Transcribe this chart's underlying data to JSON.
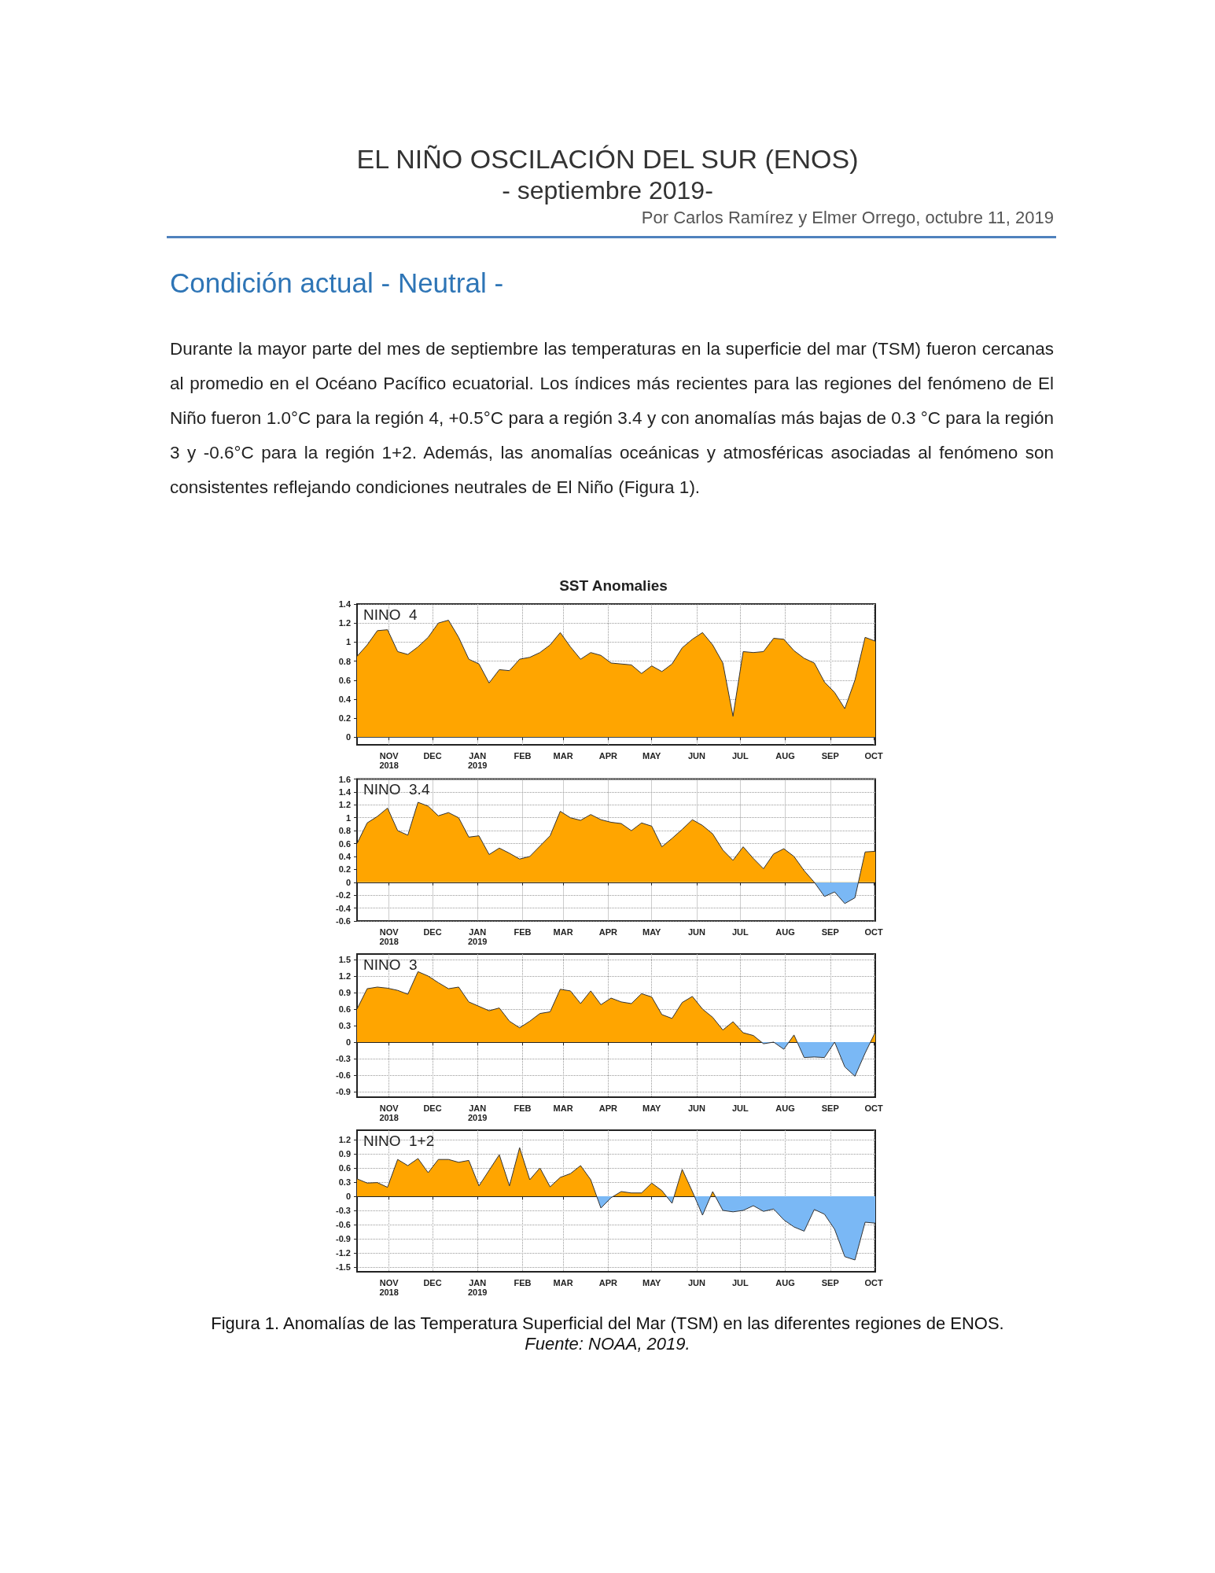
{
  "chart_data": [
    {
      "type": "other",
      "title": "EL NIÑO OSCILACIÓN DEL SUR (ENOS)",
      "subtitle": "- septiembre 2019-",
      "annotations": [
        "Por Carlos Ramírez y Elmer Orrego, octubre 11, 2019",
        "Condición actual - Neutral -",
        "Durante la mayor parte del mes de septiembre las temperaturas en la superficie del mar (TSM) fueron cercanas al promedio en el Océano Pacífico ecuatorial. Los índices más recientes para las regiones del fenómeno de El Niño fueron 1.0°C para la región 4, +0.5°C para a región 3.4 y con anomalías más bajas de 0.3 °C para la región 3 y -0.6°C para la región 1+2. Además, las anomalías oceánicas y atmosféricas asociadas al fenómeno son consistentes reflejando condiciones neutrales de El Niño (Figura 1)."
      ]
    },
    {
      "type": "area",
      "title": "SST Anomalies",
      "annotations": [
        "NINO  4"
      ],
      "colors": [
        "#ffa500",
        "#7ab8f5"
      ],
      "grid": true,
      "x": [
        "2018-10-10",
        "2018-10-17",
        "2018-10-24",
        "2018-10-31",
        "2018-11-07",
        "2018-11-14",
        "2018-11-21",
        "2018-11-28",
        "2018-12-05",
        "2018-12-12",
        "2018-12-19",
        "2018-12-26",
        "2019-01-02",
        "2019-01-09",
        "2019-01-16",
        "2019-01-23",
        "2019-01-30",
        "2019-02-06",
        "2019-02-13",
        "2019-02-20",
        "2019-02-27",
        "2019-03-06",
        "2019-03-13",
        "2019-03-20",
        "2019-03-27",
        "2019-04-03",
        "2019-04-10",
        "2019-04-17",
        "2019-04-24",
        "2019-05-01",
        "2019-05-08",
        "2019-05-15",
        "2019-05-22",
        "2019-05-29",
        "2019-06-05",
        "2019-06-12",
        "2019-06-19",
        "2019-06-26",
        "2019-07-03",
        "2019-07-10",
        "2019-07-17",
        "2019-07-24",
        "2019-07-31",
        "2019-08-07",
        "2019-08-14",
        "2019-08-21",
        "2019-08-28",
        "2019-09-04",
        "2019-09-11",
        "2019-09-18",
        "2019-09-25",
        "2019-10-02"
      ],
      "xlim": [
        "2018-10-10",
        "2019-10-02"
      ],
      "xticks": [
        {
          "value": "2018-11-01",
          "label": "NOV\n2018"
        },
        {
          "value": "2018-12-01",
          "label": "DEC"
        },
        {
          "value": "2019-01-01",
          "label": "JAN\n2019"
        },
        {
          "value": "2019-02-01",
          "label": "FEB"
        },
        {
          "value": "2019-03-01",
          "label": "MAR"
        },
        {
          "value": "2019-04-01",
          "label": "APR"
        },
        {
          "value": "2019-05-01",
          "label": "MAY"
        },
        {
          "value": "2019-06-01",
          "label": "JUN"
        },
        {
          "value": "2019-07-01",
          "label": "JUL"
        },
        {
          "value": "2019-08-01",
          "label": "AUG"
        },
        {
          "value": "2019-09-01",
          "label": "SEP"
        },
        {
          "value": "2019-10-01",
          "label": "OCT"
        }
      ],
      "ylim": [
        -0.08,
        1.4
      ],
      "yticks": [
        0,
        0.2,
        0.4,
        0.6,
        0.8,
        1,
        1.2,
        1.4
      ],
      "series": [
        {
          "values": [
            0.85,
            0.97,
            1.12,
            1.13,
            0.9,
            0.87,
            0.95,
            1.05,
            1.2,
            1.23,
            1.05,
            0.82,
            0.77,
            0.57,
            0.71,
            0.7,
            0.82,
            0.84,
            0.89,
            0.97,
            1.1,
            0.95,
            0.82,
            0.89,
            0.86,
            0.78,
            0.77,
            0.76,
            0.67,
            0.75,
            0.69,
            0.77,
            0.94,
            1.03,
            1.1,
            0.97,
            0.78,
            0.22,
            0.9,
            0.89,
            0.9,
            1.04,
            1.03,
            0.91,
            0.83,
            0.78,
            0.58,
            0.47,
            0.3,
            0.6,
            1.05,
            1.01
          ]
        }
      ]
    },
    {
      "type": "area",
      "annotations": [
        "NINO  3.4"
      ],
      "colors": [
        "#ffa500",
        "#7ab8f5"
      ],
      "grid": true,
      "x": [
        "2018-10-10",
        "2018-10-17",
        "2018-10-24",
        "2018-10-31",
        "2018-11-07",
        "2018-11-14",
        "2018-11-21",
        "2018-11-28",
        "2018-12-05",
        "2018-12-12",
        "2018-12-19",
        "2018-12-26",
        "2019-01-02",
        "2019-01-09",
        "2019-01-16",
        "2019-01-23",
        "2019-01-30",
        "2019-02-06",
        "2019-02-13",
        "2019-02-20",
        "2019-02-27",
        "2019-03-06",
        "2019-03-13",
        "2019-03-20",
        "2019-03-27",
        "2019-04-03",
        "2019-04-10",
        "2019-04-17",
        "2019-04-24",
        "2019-05-01",
        "2019-05-08",
        "2019-05-15",
        "2019-05-22",
        "2019-05-29",
        "2019-06-05",
        "2019-06-12",
        "2019-06-19",
        "2019-06-26",
        "2019-07-03",
        "2019-07-10",
        "2019-07-17",
        "2019-07-24",
        "2019-07-31",
        "2019-08-07",
        "2019-08-14",
        "2019-08-21",
        "2019-08-28",
        "2019-09-04",
        "2019-09-11",
        "2019-09-18",
        "2019-09-25",
        "2019-10-02"
      ],
      "xlim": [
        "2018-10-10",
        "2019-10-02"
      ],
      "xticks": [
        {
          "value": "2018-11-01",
          "label": "NOV\n2018"
        },
        {
          "value": "2018-12-01",
          "label": "DEC"
        },
        {
          "value": "2019-01-01",
          "label": "JAN\n2019"
        },
        {
          "value": "2019-02-01",
          "label": "FEB"
        },
        {
          "value": "2019-03-01",
          "label": "MAR"
        },
        {
          "value": "2019-04-01",
          "label": "APR"
        },
        {
          "value": "2019-05-01",
          "label": "MAY"
        },
        {
          "value": "2019-06-01",
          "label": "JUN"
        },
        {
          "value": "2019-07-01",
          "label": "JUL"
        },
        {
          "value": "2019-08-01",
          "label": "AUG"
        },
        {
          "value": "2019-09-01",
          "label": "SEP"
        },
        {
          "value": "2019-10-01",
          "label": "OCT"
        }
      ],
      "ylim": [
        -0.6,
        1.6
      ],
      "yticks": [
        -0.6,
        -0.4,
        -0.2,
        0,
        0.2,
        0.4,
        0.6,
        0.8,
        1,
        1.2,
        1.4,
        1.6
      ],
      "series": [
        {
          "values": [
            0.6,
            0.92,
            1.02,
            1.15,
            0.8,
            0.73,
            1.24,
            1.18,
            1.03,
            1.08,
            1.0,
            0.7,
            0.72,
            0.43,
            0.53,
            0.45,
            0.36,
            0.4,
            0.56,
            0.72,
            1.1,
            1.0,
            0.96,
            1.05,
            0.97,
            0.93,
            0.91,
            0.8,
            0.92,
            0.87,
            0.55,
            0.68,
            0.82,
            0.97,
            0.88,
            0.75,
            0.5,
            0.34,
            0.55,
            0.37,
            0.21,
            0.44,
            0.52,
            0.4,
            0.18,
            0.0,
            -0.22,
            -0.15,
            -0.33,
            -0.24,
            0.47,
            0.48
          ]
        }
      ]
    },
    {
      "type": "area",
      "annotations": [
        "NINO  3"
      ],
      "colors": [
        "#ffa500",
        "#7ab8f5"
      ],
      "grid": true,
      "x": [
        "2018-10-10",
        "2018-10-17",
        "2018-10-24",
        "2018-10-31",
        "2018-11-07",
        "2018-11-14",
        "2018-11-21",
        "2018-11-28",
        "2018-12-05",
        "2018-12-12",
        "2018-12-19",
        "2018-12-26",
        "2019-01-02",
        "2019-01-09",
        "2019-01-16",
        "2019-01-23",
        "2019-01-30",
        "2019-02-06",
        "2019-02-13",
        "2019-02-20",
        "2019-02-27",
        "2019-03-06",
        "2019-03-13",
        "2019-03-20",
        "2019-03-27",
        "2019-04-03",
        "2019-04-10",
        "2019-04-17",
        "2019-04-24",
        "2019-05-01",
        "2019-05-08",
        "2019-05-15",
        "2019-05-22",
        "2019-05-29",
        "2019-06-05",
        "2019-06-12",
        "2019-06-19",
        "2019-06-26",
        "2019-07-03",
        "2019-07-10",
        "2019-07-17",
        "2019-07-24",
        "2019-07-31",
        "2019-08-07",
        "2019-08-14",
        "2019-08-21",
        "2019-08-28",
        "2019-09-04",
        "2019-09-11",
        "2019-09-18",
        "2019-09-25",
        "2019-10-02"
      ],
      "xlim": [
        "2018-10-10",
        "2019-10-02"
      ],
      "xticks": [
        {
          "value": "2018-11-01",
          "label": "NOV\n2018"
        },
        {
          "value": "2018-12-01",
          "label": "DEC"
        },
        {
          "value": "2019-01-01",
          "label": "JAN\n2019"
        },
        {
          "value": "2019-02-01",
          "label": "FEB"
        },
        {
          "value": "2019-03-01",
          "label": "MAR"
        },
        {
          "value": "2019-04-01",
          "label": "APR"
        },
        {
          "value": "2019-05-01",
          "label": "MAY"
        },
        {
          "value": "2019-06-01",
          "label": "JUN"
        },
        {
          "value": "2019-07-01",
          "label": "JUL"
        },
        {
          "value": "2019-08-01",
          "label": "AUG"
        },
        {
          "value": "2019-09-01",
          "label": "SEP"
        },
        {
          "value": "2019-10-01",
          "label": "OCT"
        }
      ],
      "ylim": [
        -1.0,
        1.6
      ],
      "yticks": [
        -0.9,
        -0.6,
        -0.3,
        0,
        0.3,
        0.6,
        0.9,
        1.2,
        1.5
      ],
      "series": [
        {
          "values": [
            0.6,
            0.97,
            1.0,
            0.98,
            0.94,
            0.87,
            1.28,
            1.2,
            1.08,
            0.97,
            1.0,
            0.73,
            0.65,
            0.57,
            0.62,
            0.38,
            0.26,
            0.38,
            0.52,
            0.55,
            0.96,
            0.93,
            0.7,
            0.93,
            0.68,
            0.8,
            0.73,
            0.7,
            0.88,
            0.82,
            0.5,
            0.43,
            0.72,
            0.83,
            0.6,
            0.45,
            0.22,
            0.37,
            0.17,
            0.12,
            -0.03,
            0.0,
            -0.13,
            0.13,
            -0.28,
            -0.27,
            -0.28,
            0.0,
            -0.45,
            -0.62,
            -0.2,
            0.18
          ]
        }
      ]
    },
    {
      "type": "area",
      "annotations": [
        "NINO  1+2",
        "Figura 1. Anomalías de las Temperatura Superficial del Mar (TSM) en las diferentes regiones de ENOS.",
        "Fuente: NOAA, 2019."
      ],
      "colors": [
        "#ffa500",
        "#7ab8f5"
      ],
      "grid": true,
      "x": [
        "2018-10-10",
        "2018-10-17",
        "2018-10-24",
        "2018-10-31",
        "2018-11-07",
        "2018-11-14",
        "2018-11-21",
        "2018-11-28",
        "2018-12-05",
        "2018-12-12",
        "2018-12-19",
        "2018-12-26",
        "2019-01-02",
        "2019-01-09",
        "2019-01-16",
        "2019-01-23",
        "2019-01-30",
        "2019-02-06",
        "2019-02-13",
        "2019-02-20",
        "2019-02-27",
        "2019-03-06",
        "2019-03-13",
        "2019-03-20",
        "2019-03-27",
        "2019-04-03",
        "2019-04-10",
        "2019-04-17",
        "2019-04-24",
        "2019-05-01",
        "2019-05-08",
        "2019-05-15",
        "2019-05-22",
        "2019-05-29",
        "2019-06-05",
        "2019-06-12",
        "2019-06-19",
        "2019-06-26",
        "2019-07-03",
        "2019-07-10",
        "2019-07-17",
        "2019-07-24",
        "2019-07-31",
        "2019-08-07",
        "2019-08-14",
        "2019-08-21",
        "2019-08-28",
        "2019-09-04",
        "2019-09-11",
        "2019-09-18",
        "2019-09-25",
        "2019-10-02"
      ],
      "xlim": [
        "2018-10-10",
        "2019-10-02"
      ],
      "xticks": [
        {
          "value": "2018-11-01",
          "label": "NOV\n2018"
        },
        {
          "value": "2018-12-01",
          "label": "DEC"
        },
        {
          "value": "2019-01-01",
          "label": "JAN\n2019"
        },
        {
          "value": "2019-02-01",
          "label": "FEB"
        },
        {
          "value": "2019-03-01",
          "label": "MAR"
        },
        {
          "value": "2019-04-01",
          "label": "APR"
        },
        {
          "value": "2019-05-01",
          "label": "MAY"
        },
        {
          "value": "2019-06-01",
          "label": "JUN"
        },
        {
          "value": "2019-07-01",
          "label": "JUL"
        },
        {
          "value": "2019-08-01",
          "label": "AUG"
        },
        {
          "value": "2019-09-01",
          "label": "SEP"
        },
        {
          "value": "2019-10-01",
          "label": "OCT"
        }
      ],
      "ylim": [
        -1.6,
        1.4
      ],
      "yticks": [
        -1.5,
        -1.2,
        -0.9,
        -0.6,
        -0.3,
        0,
        0.3,
        0.6,
        0.9,
        1.2
      ],
      "series": [
        {
          "values": [
            0.37,
            0.28,
            0.29,
            0.19,
            0.78,
            0.65,
            0.8,
            0.5,
            0.78,
            0.78,
            0.72,
            0.76,
            0.22,
            0.55,
            0.88,
            0.22,
            1.03,
            0.35,
            0.6,
            0.2,
            0.4,
            0.48,
            0.65,
            0.35,
            -0.25,
            -0.03,
            0.1,
            0.07,
            0.07,
            0.28,
            0.12,
            -0.15,
            0.57,
            0.1,
            -0.4,
            0.1,
            -0.3,
            -0.33,
            -0.3,
            -0.2,
            -0.32,
            -0.27,
            -0.5,
            -0.65,
            -0.74,
            -0.28,
            -0.38,
            -0.7,
            -1.28,
            -1.35,
            -0.55,
            -0.57
          ]
        }
      ]
    }
  ]
}
